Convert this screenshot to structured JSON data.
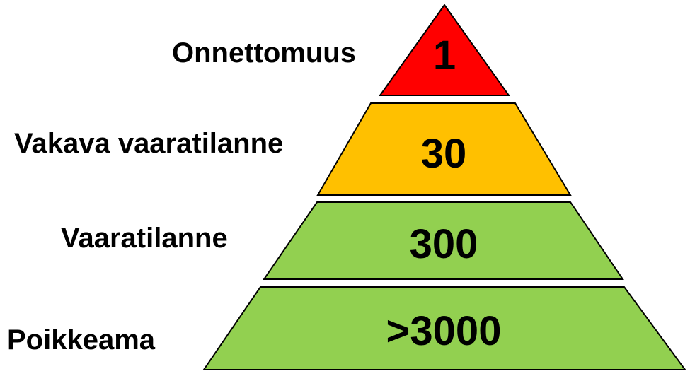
{
  "levels": [
    {
      "label": "Onnettomuus",
      "value": "1",
      "color": "#ff0000"
    },
    {
      "label": "Vakava vaaratilanne",
      "value": "30",
      "color": "#ffc000"
    },
    {
      "label": "Vaaratilanne",
      "value": "300",
      "color": "#92d050"
    },
    {
      "label": "Poikkeama",
      "value": ">3000",
      "color": "#92d050"
    }
  ]
}
